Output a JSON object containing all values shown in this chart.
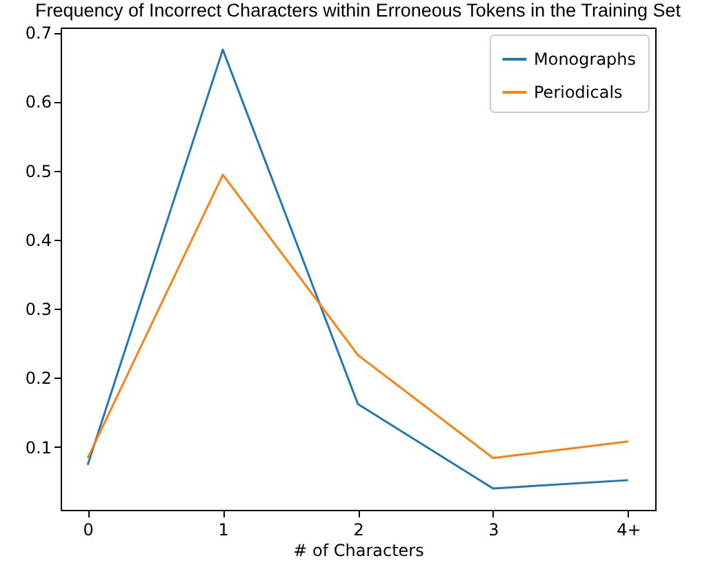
{
  "chart_data": {
    "type": "line",
    "title": "Frequency of Incorrect Characters within Erroneous Tokens in the Training Set",
    "xlabel": "# of Characters",
    "categories": [
      "0",
      "1",
      "2",
      "3",
      "4+"
    ],
    "series": [
      {
        "name": "Monographs",
        "color": "#1f77b4",
        "values": [
          0.074,
          0.675,
          0.162,
          0.04,
          0.052
        ]
      },
      {
        "name": "Periodicals",
        "color": "#ff7f0e",
        "values": [
          0.084,
          0.494,
          0.233,
          0.084,
          0.108
        ]
      }
    ],
    "ylim": [
      0.009,
      0.707
    ],
    "yticks": [
      0.1,
      0.2,
      0.3,
      0.4,
      0.5,
      0.6,
      0.7
    ],
    "grid": false,
    "legend": "top right",
    "marker": "none",
    "line_style": "solid"
  }
}
